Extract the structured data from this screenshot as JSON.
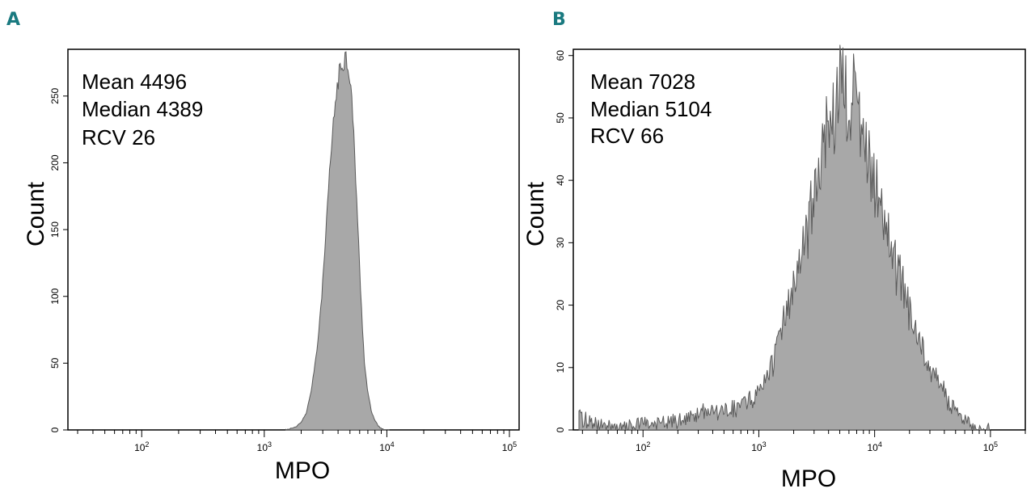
{
  "colors": {
    "panel_letter": "#1a7a80",
    "fill": "#a8a8a8",
    "stroke": "#5a5a5a",
    "axis": "#000000"
  },
  "chart_data": [
    {
      "panel": "A",
      "type": "area",
      "xscale": "log",
      "xlabel": "MPO",
      "ylabel": "Count",
      "xlim": [
        25,
        120000
      ],
      "ylim": [
        0,
        285
      ],
      "yticks": [
        0,
        50,
        100,
        150,
        200,
        250
      ],
      "ytick_labels": [
        "0",
        "50",
        "100",
        "150",
        "200",
        "250"
      ],
      "xticks": [
        100,
        1000,
        10000,
        100000
      ],
      "xtick_labels": [
        {
          "base": "10",
          "exp": "2"
        },
        {
          "base": "10",
          "exp": "3"
        },
        {
          "base": "10",
          "exp": "4"
        },
        {
          "base": "10",
          "exp": "5"
        }
      ],
      "stats": [
        "Mean 4496",
        "Median 4389",
        "RCV 26"
      ],
      "histogram": {
        "x": [
          1500,
          1800,
          2000,
          2200,
          2400,
          2700,
          3000,
          3200,
          3400,
          3600,
          3800,
          4000,
          4200,
          4400,
          4600,
          4800,
          5000,
          5200,
          5400,
          5700,
          6000,
          6300,
          6600,
          7000,
          7500,
          8000,
          8500,
          9000,
          9500,
          10500
        ],
        "y": [
          0,
          2,
          6,
          12,
          28,
          60,
          110,
          150,
          190,
          220,
          245,
          262,
          270,
          276,
          281,
          274,
          265,
          245,
          215,
          170,
          120,
          80,
          48,
          28,
          14,
          7,
          3,
          1,
          0,
          0
        ]
      }
    },
    {
      "panel": "B",
      "type": "area",
      "xscale": "log",
      "xlabel": "MPO",
      "ylabel": "Count",
      "xlim": [
        25,
        200000
      ],
      "ylim": [
        0,
        61
      ],
      "yticks": [
        0,
        10,
        20,
        30,
        40,
        50,
        60
      ],
      "ytick_labels": [
        "0",
        "10",
        "20",
        "30",
        "40",
        "50",
        "60"
      ],
      "xticks": [
        100,
        1000,
        10000,
        100000
      ],
      "xtick_labels": [
        {
          "base": "10",
          "exp": "2"
        },
        {
          "base": "10",
          "exp": "3"
        },
        {
          "base": "10",
          "exp": "4"
        },
        {
          "base": "10",
          "exp": "5"
        }
      ],
      "stats": [
        "Mean 7028",
        "Median 5104",
        "RCV 66"
      ],
      "histogram": {
        "x": [
          28,
          40,
          60,
          100,
          150,
          250,
          350,
          500,
          700,
          900,
          1200,
          1600,
          2000,
          2500,
          3000,
          3500,
          4000,
          4500,
          5000,
          5500,
          6000,
          7000,
          8000,
          9000,
          10000,
          12000,
          15000,
          20000,
          25000,
          30000,
          40000,
          50000,
          65000,
          80000,
          100000
        ],
        "y": [
          2,
          1,
          0,
          1,
          1,
          2,
          3,
          3,
          4,
          5,
          9,
          16,
          22,
          30,
          38,
          44,
          50,
          53,
          54,
          55,
          53,
          50,
          46,
          43,
          40,
          34,
          27,
          19,
          14,
          10,
          6,
          3,
          1,
          0,
          0
        ]
      }
    }
  ]
}
